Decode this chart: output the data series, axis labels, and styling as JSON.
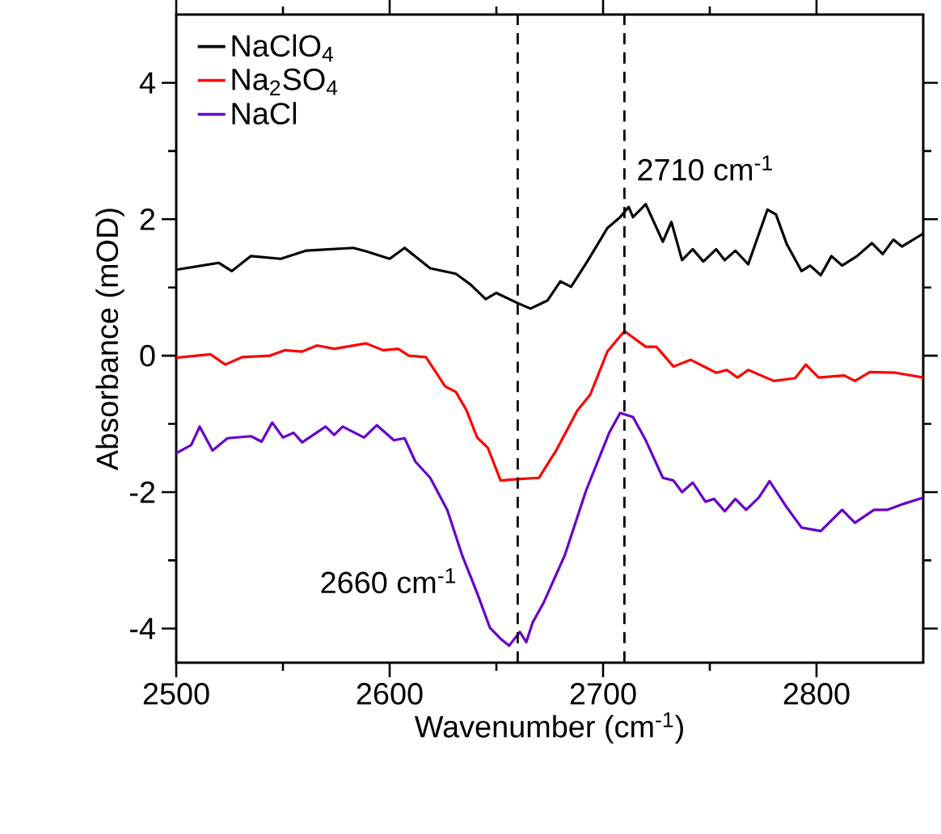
{
  "chart_data": {
    "type": "line",
    "xlabel": "Wavenumber (cm$^{-1}$)",
    "ylabel": "Absorbance (mOD)",
    "xlim": [
      2500,
      2850
    ],
    "ylim": [
      -4.5,
      5
    ],
    "xticks": [
      2500,
      2600,
      2700,
      2800
    ],
    "yticks": [
      -4,
      -2,
      0,
      2,
      4
    ],
    "legend": "top left",
    "line_style": "solid",
    "marker": "none",
    "grid": false,
    "ref_lines": [
      {
        "axis": "x",
        "value": 2660,
        "label": "2660 cm$^{-1}$",
        "line_style": "dashed",
        "color": "#000000"
      },
      {
        "axis": "x",
        "value": 2710,
        "label": "2710 cm$^{-1}$",
        "line_style": "dashed",
        "color": "#000000"
      }
    ],
    "series": [
      {
        "name": "NaClO$_{4}$",
        "color": "#000000",
        "x": [
          2500,
          2520,
          2526,
          2535,
          2549,
          2561,
          2583,
          2589,
          2600,
          2607,
          2619,
          2631,
          2638,
          2645,
          2650,
          2660,
          2666,
          2674,
          2680,
          2685,
          2693,
          2702,
          2708,
          2712,
          2714,
          2720,
          2728,
          2732,
          2737,
          2742,
          2747,
          2753,
          2757,
          2762,
          2768,
          2777,
          2781,
          2786,
          2793,
          2797,
          2802,
          2807,
          2812,
          2819,
          2826,
          2831,
          2836,
          2840,
          2850
        ],
        "values": [
          1.26,
          1.36,
          1.24,
          1.46,
          1.42,
          1.54,
          1.58,
          1.53,
          1.42,
          1.58,
          1.28,
          1.2,
          1.04,
          0.83,
          0.92,
          0.77,
          0.69,
          0.81,
          1.09,
          1.01,
          1.4,
          1.87,
          2.03,
          2.18,
          2.03,
          2.22,
          1.67,
          1.96,
          1.4,
          1.56,
          1.38,
          1.56,
          1.4,
          1.54,
          1.34,
          2.14,
          2.07,
          1.64,
          1.24,
          1.32,
          1.18,
          1.46,
          1.32,
          1.46,
          1.65,
          1.49,
          1.7,
          1.6,
          1.79
        ]
      },
      {
        "name": "Na$_{2}$SO$_{4}$",
        "color": "#ff0000",
        "x": [
          2500,
          2516,
          2523,
          2531,
          2544,
          2551,
          2559,
          2566,
          2574,
          2589,
          2597,
          2604,
          2609,
          2617,
          2626,
          2631,
          2636,
          2641,
          2646,
          2652,
          2660,
          2670,
          2678,
          2688,
          2694,
          2702,
          2710,
          2720,
          2725,
          2733,
          2741,
          2753,
          2758,
          2763,
          2768,
          2780,
          2790,
          2795,
          2801,
          2813,
          2818,
          2825,
          2837,
          2850
        ],
        "values": [
          -0.03,
          0.02,
          -0.13,
          -0.02,
          0,
          0.08,
          0.06,
          0.15,
          0.1,
          0.18,
          0.08,
          0.1,
          0,
          -0.02,
          -0.45,
          -0.53,
          -0.8,
          -1.2,
          -1.35,
          -1.83,
          -1.81,
          -1.79,
          -1.39,
          -0.8,
          -0.57,
          0.06,
          0.36,
          0.13,
          0.13,
          -0.16,
          -0.06,
          -0.25,
          -0.21,
          -0.32,
          -0.21,
          -0.37,
          -0.33,
          -0.13,
          -0.32,
          -0.29,
          -0.37,
          -0.24,
          -0.25,
          -0.32
        ]
      },
      {
        "name": "NaCl",
        "color": "#6600cc",
        "x": [
          2500,
          2507,
          2511,
          2517,
          2524,
          2535,
          2540,
          2545,
          2550,
          2555,
          2559,
          2570,
          2574,
          2578,
          2588,
          2594,
          2602,
          2607,
          2612,
          2619,
          2627,
          2634,
          2641,
          2647,
          2652,
          2656,
          2661,
          2664,
          2667,
          2672,
          2682,
          2692,
          2703,
          2708,
          2714,
          2720,
          2728,
          2733,
          2737,
          2742,
          2748,
          2752,
          2757,
          2762,
          2767,
          2773,
          2778,
          2786,
          2793,
          2802,
          2812,
          2818,
          2827,
          2833,
          2840,
          2850
        ],
        "values": [
          -1.43,
          -1.31,
          -1.04,
          -1.39,
          -1.21,
          -1.18,
          -1.26,
          -0.98,
          -1.2,
          -1.13,
          -1.27,
          -1.04,
          -1.16,
          -1.04,
          -1.2,
          -1.02,
          -1.24,
          -1.21,
          -1.55,
          -1.79,
          -2.26,
          -2.93,
          -3.48,
          -3.99,
          -4.15,
          -4.25,
          -4.05,
          -4.2,
          -3.91,
          -3.63,
          -2.93,
          -1.98,
          -1.12,
          -0.84,
          -0.9,
          -1.24,
          -1.79,
          -1.83,
          -2.0,
          -1.86,
          -2.14,
          -2.1,
          -2.28,
          -2.1,
          -2.26,
          -2.08,
          -1.84,
          -2.22,
          -2.52,
          -2.57,
          -2.26,
          -2.45,
          -2.26,
          -2.26,
          -2.18,
          -2.08
        ]
      }
    ]
  }
}
